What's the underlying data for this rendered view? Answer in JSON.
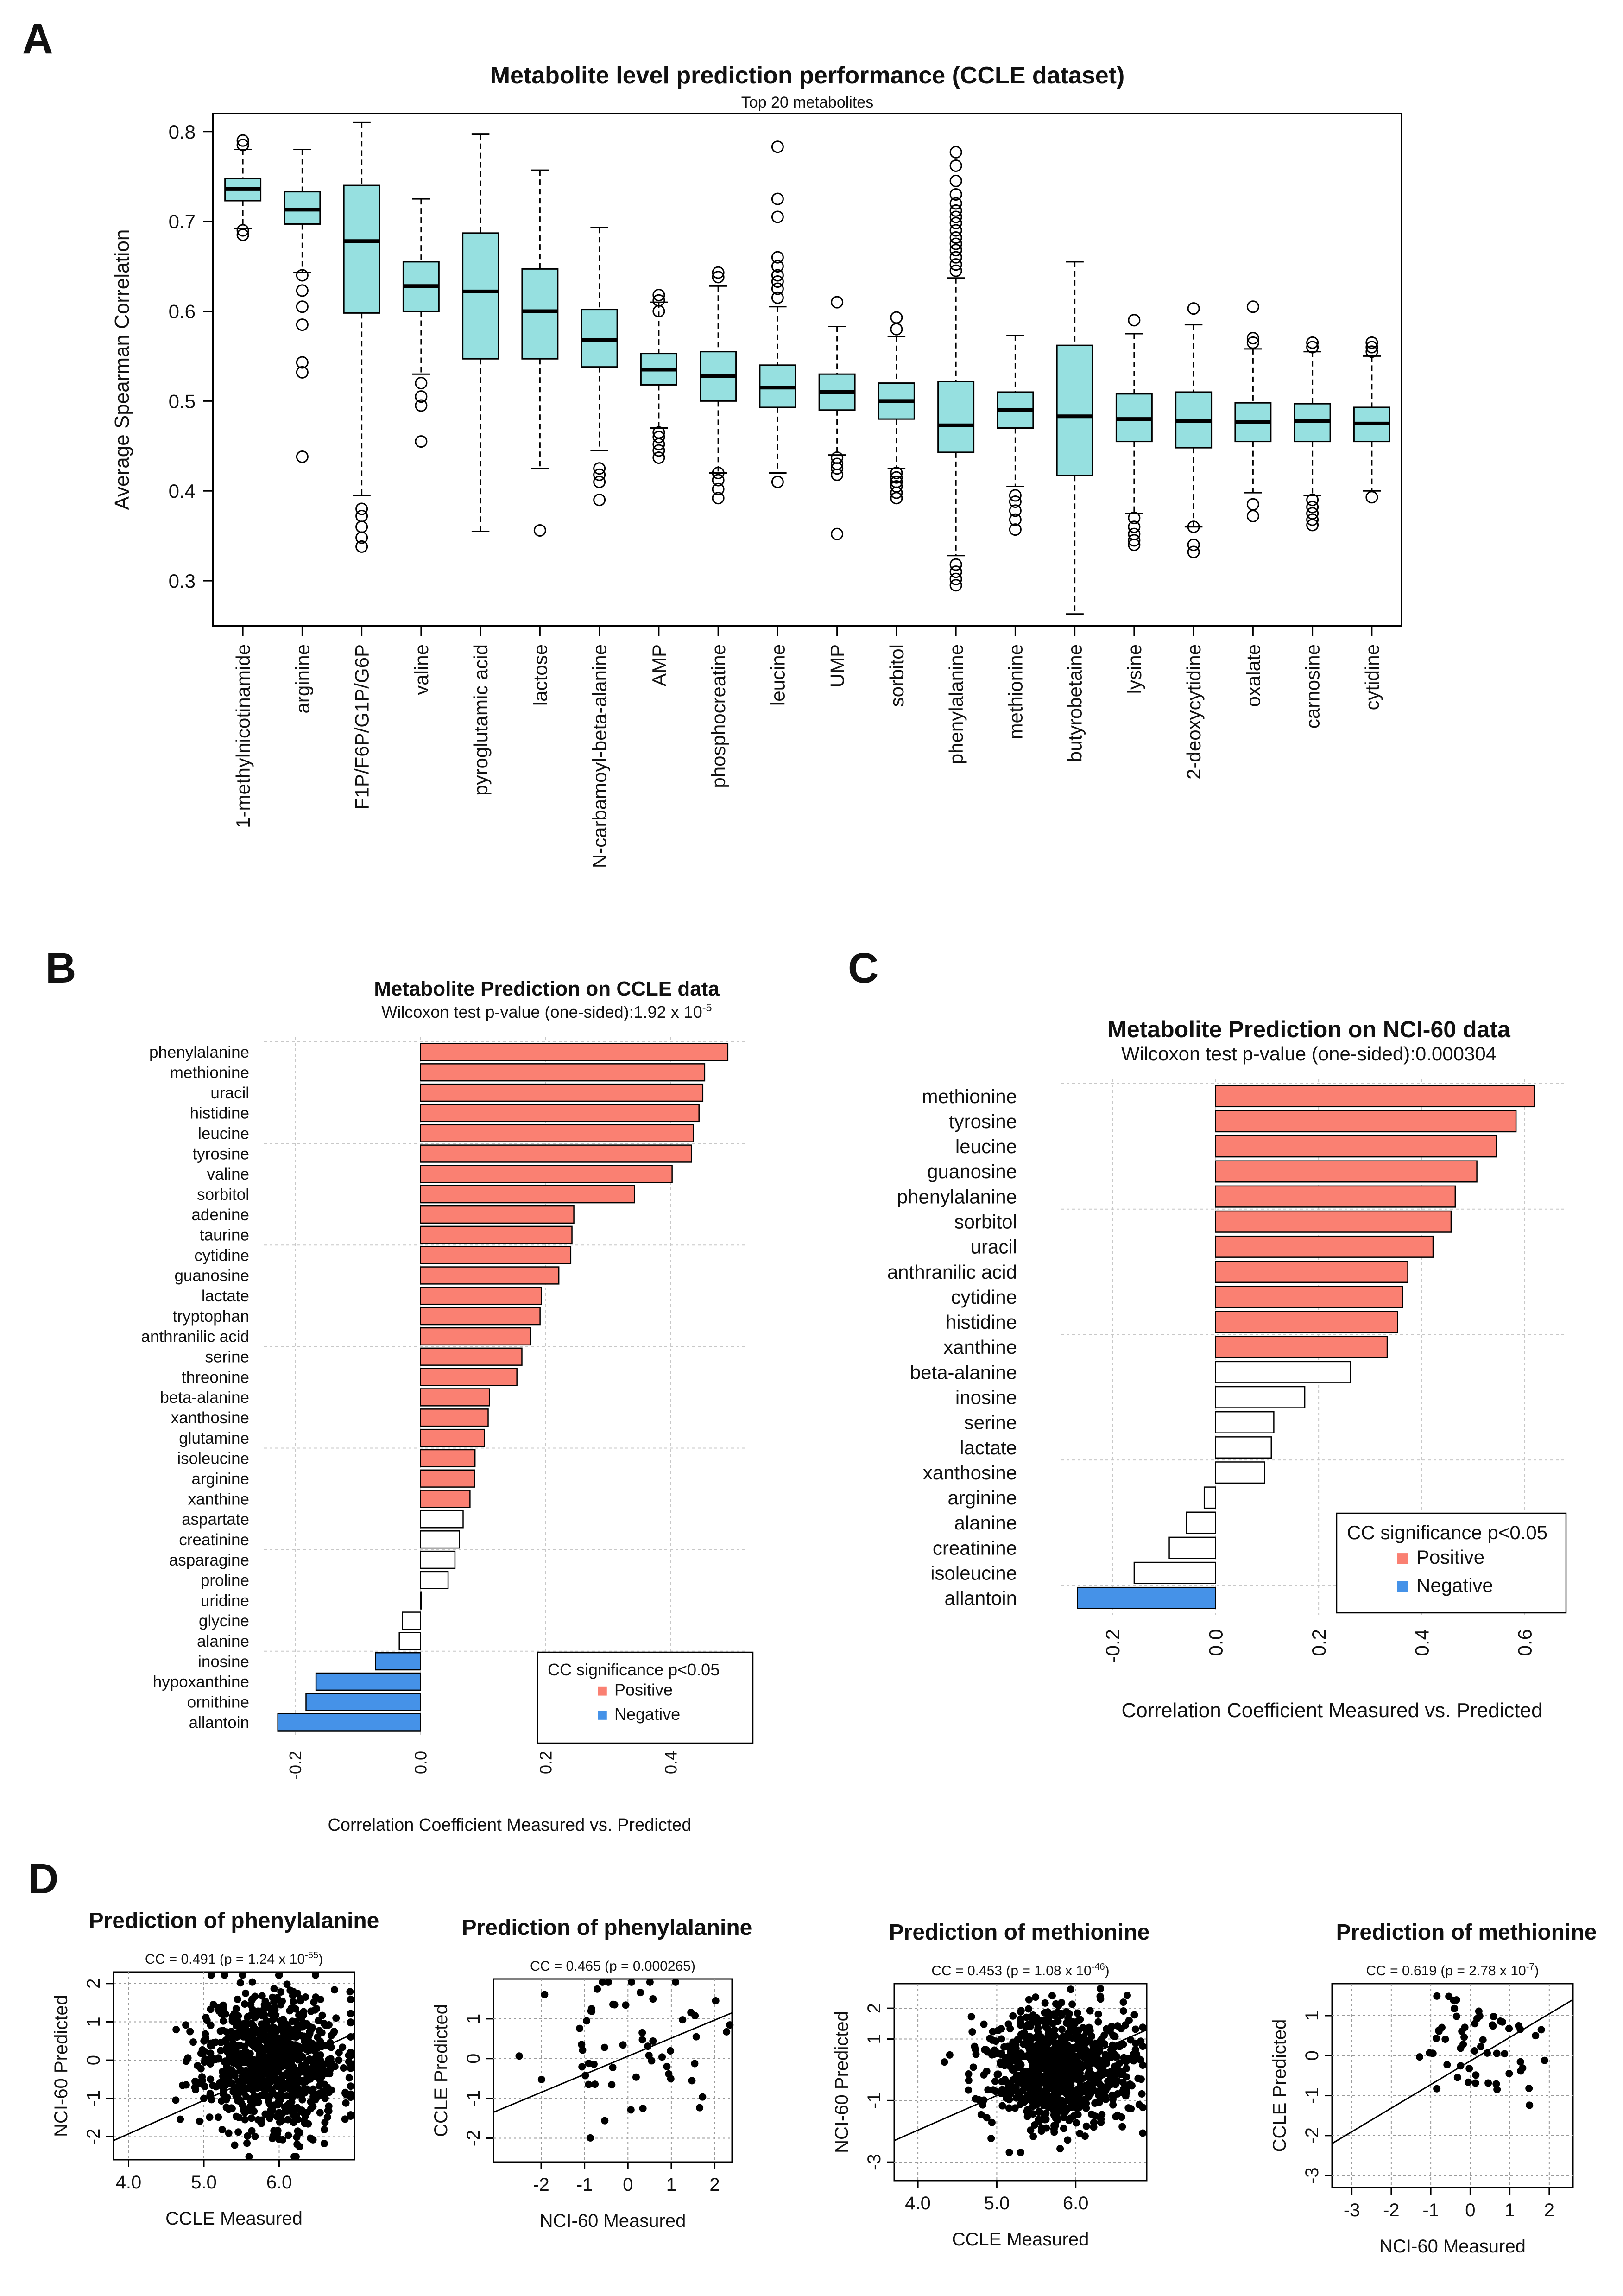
{
  "panel_letters": [
    "A",
    "B",
    "C",
    "D"
  ],
  "chart_data": [
    {
      "id": "A",
      "type": "boxplot",
      "title": "Metabolite level prediction performance (CCLE dataset)",
      "subtitle": "Top 20 metabolites",
      "ylabel": "Average Spearman Correlation",
      "ylim": [
        0.25,
        0.82
      ],
      "yticks": [
        0.3,
        0.4,
        0.5,
        0.6,
        0.7,
        0.8
      ],
      "box_color": "#96e0e0",
      "categories": [
        "1-methylnicotinamide",
        "arginine",
        "F1P/F6P/G1P/G6P",
        "valine",
        "pyroglutamic acid",
        "lactose",
        "N-carbamoyl-beta-alanine",
        "AMP",
        "phosphocreatine",
        "leucine",
        "UMP",
        "sorbitol",
        "phenylalanine",
        "methionine",
        "butyrobetaine",
        "lysine",
        "2-deoxycytidine",
        "oxalate",
        "carnosine",
        "cytidine"
      ],
      "boxes": [
        {
          "min": 0.692,
          "q1": 0.723,
          "median": 0.736,
          "q3": 0.748,
          "max": 0.78,
          "outliers": [
            0.685,
            0.69,
            0.785,
            0.79
          ]
        },
        {
          "min": 0.643,
          "q1": 0.697,
          "median": 0.713,
          "q3": 0.733,
          "max": 0.78,
          "outliers": [
            0.438,
            0.532,
            0.543,
            0.585,
            0.605,
            0.623,
            0.64
          ]
        },
        {
          "min": 0.395,
          "q1": 0.598,
          "median": 0.678,
          "q3": 0.74,
          "max": 0.81,
          "outliers": [
            0.338,
            0.348,
            0.36,
            0.372,
            0.38
          ]
        },
        {
          "min": 0.53,
          "q1": 0.6,
          "median": 0.628,
          "q3": 0.655,
          "max": 0.725,
          "outliers": [
            0.455,
            0.495,
            0.505,
            0.52
          ]
        },
        {
          "min": 0.355,
          "q1": 0.547,
          "median": 0.622,
          "q3": 0.687,
          "max": 0.797,
          "outliers": []
        },
        {
          "min": 0.425,
          "q1": 0.547,
          "median": 0.6,
          "q3": 0.647,
          "max": 0.757,
          "outliers": [
            0.356
          ]
        },
        {
          "min": 0.445,
          "q1": 0.538,
          "median": 0.568,
          "q3": 0.602,
          "max": 0.693,
          "outliers": [
            0.39,
            0.41,
            0.418,
            0.425
          ]
        },
        {
          "min": 0.47,
          "q1": 0.518,
          "median": 0.535,
          "q3": 0.553,
          "max": 0.61,
          "outliers": [
            0.437,
            0.445,
            0.452,
            0.46,
            0.465,
            0.6,
            0.612,
            0.618
          ]
        },
        {
          "min": 0.42,
          "q1": 0.5,
          "median": 0.528,
          "q3": 0.555,
          "max": 0.628,
          "outliers": [
            0.392,
            0.402,
            0.412,
            0.42,
            0.638,
            0.643
          ]
        },
        {
          "min": 0.42,
          "q1": 0.493,
          "median": 0.515,
          "q3": 0.54,
          "max": 0.605,
          "outliers": [
            0.41,
            0.615,
            0.625,
            0.633,
            0.64,
            0.65,
            0.66,
            0.705,
            0.725,
            0.783
          ]
        },
        {
          "min": 0.44,
          "q1": 0.49,
          "median": 0.51,
          "q3": 0.53,
          "max": 0.583,
          "outliers": [
            0.352,
            0.418,
            0.425,
            0.43,
            0.437,
            0.61
          ]
        },
        {
          "min": 0.425,
          "q1": 0.48,
          "median": 0.5,
          "q3": 0.52,
          "max": 0.572,
          "outliers": [
            0.392,
            0.398,
            0.405,
            0.41,
            0.415,
            0.42,
            0.58,
            0.593
          ]
        },
        {
          "min": 0.328,
          "q1": 0.443,
          "median": 0.473,
          "q3": 0.522,
          "max": 0.637,
          "outliers": [
            0.295,
            0.302,
            0.31,
            0.318,
            0.645,
            0.652,
            0.66,
            0.668,
            0.675,
            0.682,
            0.69,
            0.698,
            0.705,
            0.712,
            0.72,
            0.73,
            0.745,
            0.762,
            0.777
          ]
        },
        {
          "min": 0.405,
          "q1": 0.47,
          "median": 0.49,
          "q3": 0.51,
          "max": 0.573,
          "outliers": [
            0.357,
            0.368,
            0.378,
            0.388,
            0.395
          ]
        },
        {
          "min": 0.263,
          "q1": 0.417,
          "median": 0.483,
          "q3": 0.562,
          "max": 0.655,
          "outliers": []
        },
        {
          "min": 0.375,
          "q1": 0.455,
          "median": 0.48,
          "q3": 0.508,
          "max": 0.575,
          "outliers": [
            0.34,
            0.345,
            0.352,
            0.36,
            0.37,
            0.59
          ]
        },
        {
          "min": 0.36,
          "q1": 0.448,
          "median": 0.478,
          "q3": 0.51,
          "max": 0.585,
          "outliers": [
            0.332,
            0.34,
            0.36,
            0.603
          ]
        },
        {
          "min": 0.398,
          "q1": 0.455,
          "median": 0.477,
          "q3": 0.498,
          "max": 0.558,
          "outliers": [
            0.372,
            0.385,
            0.565,
            0.57,
            0.605
          ]
        },
        {
          "min": 0.395,
          "q1": 0.455,
          "median": 0.478,
          "q3": 0.497,
          "max": 0.555,
          "outliers": [
            0.362,
            0.368,
            0.375,
            0.382,
            0.39,
            0.56,
            0.565
          ]
        },
        {
          "min": 0.4,
          "q1": 0.455,
          "median": 0.475,
          "q3": 0.493,
          "max": 0.55,
          "outliers": [
            0.393,
            0.555,
            0.56,
            0.565
          ]
        }
      ]
    },
    {
      "id": "B",
      "type": "bar",
      "orientation": "horizontal",
      "title": "Metabolite Prediction on CCLE data",
      "subtitle": "Wilcoxon test p-value (one-sided):1.92 x 10",
      "subtitle_exponent": "-5",
      "xlabel": "Correlation Coefficient Measured vs. Predicted",
      "xlim": [
        -0.25,
        0.52
      ],
      "xticks": [
        "-0.2",
        "0.0",
        "0.2",
        "0.4"
      ],
      "legend_title": "CC significance p<0.05",
      "legend": [
        {
          "label": "Positive",
          "color": "#fa8072"
        },
        {
          "label": "Negative",
          "color": "#4592e8"
        }
      ],
      "categories": [
        "phenylalanine",
        "methionine",
        "uracil",
        "histidine",
        "leucine",
        "tyrosine",
        "valine",
        "sorbitol",
        "adenine",
        "taurine",
        "cytidine",
        "guanosine",
        "lactate",
        "tryptophan",
        "anthranilic acid",
        "serine",
        "threonine",
        "beta-alanine",
        "xanthosine",
        "glutamine",
        "isoleucine",
        "arginine",
        "xanthine",
        "aspartate",
        "creatinine",
        "asparagine",
        "proline",
        "uridine",
        "glycine",
        "alanine",
        "inosine",
        "hypoxanthine",
        "ornithine",
        "allantoin"
      ],
      "values": [
        0.491,
        0.454,
        0.451,
        0.445,
        0.436,
        0.433,
        0.402,
        0.342,
        0.245,
        0.242,
        0.24,
        0.221,
        0.193,
        0.191,
        0.176,
        0.162,
        0.154,
        0.11,
        0.108,
        0.102,
        0.087,
        0.086,
        0.079,
        0.068,
        0.062,
        0.055,
        0.044,
        0.001,
        -0.029,
        -0.034,
        -0.072,
        -0.167,
        -0.183,
        -0.228
      ],
      "significance": [
        "Positive",
        "Positive",
        "Positive",
        "Positive",
        "Positive",
        "Positive",
        "Positive",
        "Positive",
        "Positive",
        "Positive",
        "Positive",
        "Positive",
        "Positive",
        "Positive",
        "Positive",
        "Positive",
        "Positive",
        "Positive",
        "Positive",
        "Positive",
        "Positive",
        "Positive",
        "Positive",
        "none",
        "none",
        "none",
        "none",
        "none",
        "none",
        "none",
        "Negative",
        "Negative",
        "Negative",
        "Negative"
      ]
    },
    {
      "id": "C",
      "type": "bar",
      "orientation": "horizontal",
      "title": "Metabolite Prediction on NCI-60 data",
      "subtitle": "Wilcoxon test p-value (one-sided):0.000304",
      "xlabel": "Correlation Coefficient Measured vs. Predicted",
      "xlim": [
        -0.3,
        0.68
      ],
      "xticks": [
        "-0.2",
        "0.0",
        "0.2",
        "0.4",
        "0.6"
      ],
      "legend_title": "CC significance p<0.05",
      "legend": [
        {
          "label": "Positive",
          "color": "#fa8072"
        },
        {
          "label": "Negative",
          "color": "#4592e8"
        }
      ],
      "categories": [
        "methionine",
        "tyrosine",
        "leucine",
        "guanosine",
        "phenylalanine",
        "sorbitol",
        "uracil",
        "anthranilic acid",
        "cytidine",
        "histidine",
        "xanthine",
        "beta-alanine",
        "inosine",
        "serine",
        "lactate",
        "xanthosine",
        "arginine",
        "alanine",
        "creatinine",
        "isoleucine",
        "allantoin"
      ],
      "values": [
        0.619,
        0.583,
        0.545,
        0.507,
        0.465,
        0.457,
        0.422,
        0.373,
        0.363,
        0.353,
        0.333,
        0.262,
        0.173,
        0.113,
        0.108,
        0.095,
        -0.022,
        -0.057,
        -0.09,
        -0.158,
        -0.268
      ],
      "significance": [
        "Positive",
        "Positive",
        "Positive",
        "Positive",
        "Positive",
        "Positive",
        "Positive",
        "Positive",
        "Positive",
        "Positive",
        "Positive",
        "none",
        "none",
        "none",
        "none",
        "none",
        "none",
        "none",
        "none",
        "none",
        "Negative"
      ]
    },
    {
      "id": "D1",
      "type": "scatter",
      "title": "Prediction of phenylalanine",
      "cc_text": "CC = 0.491 (p = 1.24 x 10",
      "cc_exponent": "-55",
      "cc_suffix": ")",
      "xlabel": "CCLE Measured",
      "ylabel": "NCI-60 Predicted",
      "xlim": [
        3.8,
        7.0
      ],
      "ylim": [
        -2.6,
        2.3
      ],
      "xticks": [
        4.0,
        5.0,
        6.0
      ],
      "xtick_labels": [
        "4.0",
        "5.0",
        "6.0"
      ],
      "yticks": [
        -2,
        -1,
        0,
        1,
        2
      ],
      "ytick_labels": [
        "-2",
        "-1",
        "0",
        "1",
        "2"
      ],
      "fit_line": {
        "x0": 3.8,
        "y0": -2.1,
        "x1": 7.0,
        "y1": 0.7
      },
      "points": {
        "n": 900,
        "x_center": 5.9,
        "x_spread": 0.45,
        "y_center": 0.0,
        "y_spread": 0.9,
        "seed": 11
      }
    },
    {
      "id": "D2",
      "type": "scatter",
      "title": "Prediction of phenylalanine",
      "cc_text": "CC = 0.465 (p = 0.000265)",
      "cc_exponent": "",
      "cc_suffix": "",
      "xlabel": "NCI-60 Measured",
      "ylabel": "CCLE Predicted",
      "xlim": [
        -3.1,
        2.4
      ],
      "ylim": [
        -2.6,
        2.0
      ],
      "xticks": [
        -2,
        -1,
        0,
        1,
        2
      ],
      "xtick_labels": [
        "-2",
        "-1",
        "0",
        "1",
        "2"
      ],
      "yticks": [
        -2,
        -1,
        0,
        1
      ],
      "ytick_labels": [
        "-2",
        "-1",
        "0",
        "1"
      ],
      "fit_line": {
        "x0": -3.1,
        "y0": -1.35,
        "x1": 2.4,
        "y1": 1.15
      },
      "points": {
        "n": 58,
        "x_center": 0.2,
        "x_spread": 1.0,
        "y_center": 0.3,
        "y_spread": 0.9,
        "seed": 23
      }
    },
    {
      "id": "D3",
      "type": "scatter",
      "title": "Prediction of methionine",
      "cc_text": "CC = 0.453 (p = 1.08 x 10",
      "cc_exponent": "-46",
      "cc_suffix": ")",
      "xlabel": "CCLE Measured",
      "ylabel": "NCI-60 Predicted",
      "xlim": [
        3.7,
        6.9
      ],
      "ylim": [
        -3.6,
        2.8
      ],
      "xticks": [
        4.0,
        5.0,
        6.0
      ],
      "xtick_labels": [
        "4.0",
        "5.0",
        "6.0"
      ],
      "yticks": [
        -3,
        -1,
        1,
        2
      ],
      "ytick_labels": [
        "-3",
        "-1",
        "1",
        "2"
      ],
      "fit_line": {
        "x0": 3.7,
        "y0": -2.3,
        "x1": 6.9,
        "y1": 1.3
      },
      "points": {
        "n": 850,
        "x_center": 5.8,
        "x_spread": 0.45,
        "y_center": 0.1,
        "y_spread": 0.95,
        "seed": 37
      }
    },
    {
      "id": "D4",
      "type": "scatter",
      "title": "Prediction of methionine",
      "cc_text": "CC = 0.619 (p = 2.78 x 10",
      "cc_exponent": "-7",
      "cc_suffix": ")",
      "xlabel": "NCI-60 Measured",
      "ylabel": "CCLE Predicted",
      "xlim": [
        -3.5,
        2.6
      ],
      "ylim": [
        -3.3,
        1.8
      ],
      "xticks": [
        -3,
        -2,
        -1,
        0,
        1,
        2
      ],
      "xtick_labels": [
        "-3",
        "-2",
        "-1",
        "0",
        "1",
        "2"
      ],
      "yticks": [
        -3,
        -2,
        -1,
        0,
        1
      ],
      "ytick_labels": [
        "-3",
        "-2",
        "-1",
        "0",
        "1"
      ],
      "fit_line": {
        "x0": -3.5,
        "y0": -2.2,
        "x1": 2.6,
        "y1": 1.4
      },
      "points": {
        "n": 58,
        "x_center": 0.1,
        "x_spread": 0.9,
        "y_center": 0.2,
        "y_spread": 0.7,
        "seed": 51
      }
    }
  ]
}
